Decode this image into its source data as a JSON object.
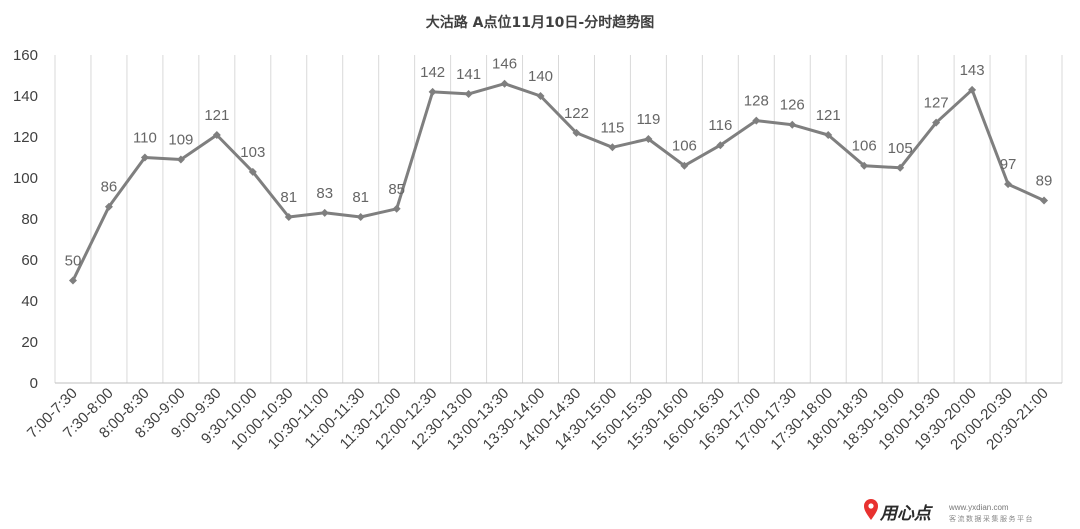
{
  "chart_data": {
    "type": "line",
    "title": "大沽路 A点位11月10日-分时趋势图",
    "xlabel": "",
    "ylabel": "",
    "ylim": [
      0,
      160
    ],
    "yticks": [
      0,
      20,
      40,
      60,
      80,
      100,
      120,
      140,
      160
    ],
    "grid": "vertical",
    "legend": "none",
    "categories": [
      "7:00-7:30",
      "7:30-8:00",
      "8:00-8:30",
      "8:30-9:00",
      "9:00-9:30",
      "9:30-10:00",
      "10:00-10:30",
      "10:30-11:00",
      "11:00-11:30",
      "11:30-12:00",
      "12:00-12:30",
      "12:30-13:00",
      "13:00-13:30",
      "13:30-14:00",
      "14:00-14:30",
      "14:30-15:00",
      "15:00-15:30",
      "15:30-16:00",
      "16:00-16:30",
      "16:30-17:00",
      "17:00-17:30",
      "17:30-18:00",
      "18:00-18:30",
      "18:30-19:00",
      "19:00-19:30",
      "19:30-20:00",
      "20:00-20:30",
      "20:30-21:00"
    ],
    "series": [
      {
        "values": [
          50,
          86,
          110,
          109,
          121,
          103,
          81,
          83,
          81,
          85,
          142,
          141,
          146,
          140,
          122,
          115,
          119,
          106,
          116,
          128,
          126,
          121,
          106,
          105,
          127,
          143,
          97,
          89
        ]
      }
    ],
    "colors": {
      "line": "#7f7f7f",
      "marker": "#7f7f7f",
      "grid": "#d9d9d9",
      "axis": "#bfbfbf"
    }
  },
  "watermark": {
    "brand": "用心点",
    "url": "www.yxdian.com",
    "tagline": "客流数据采集服务平台",
    "pin_color": "#e8312f"
  }
}
